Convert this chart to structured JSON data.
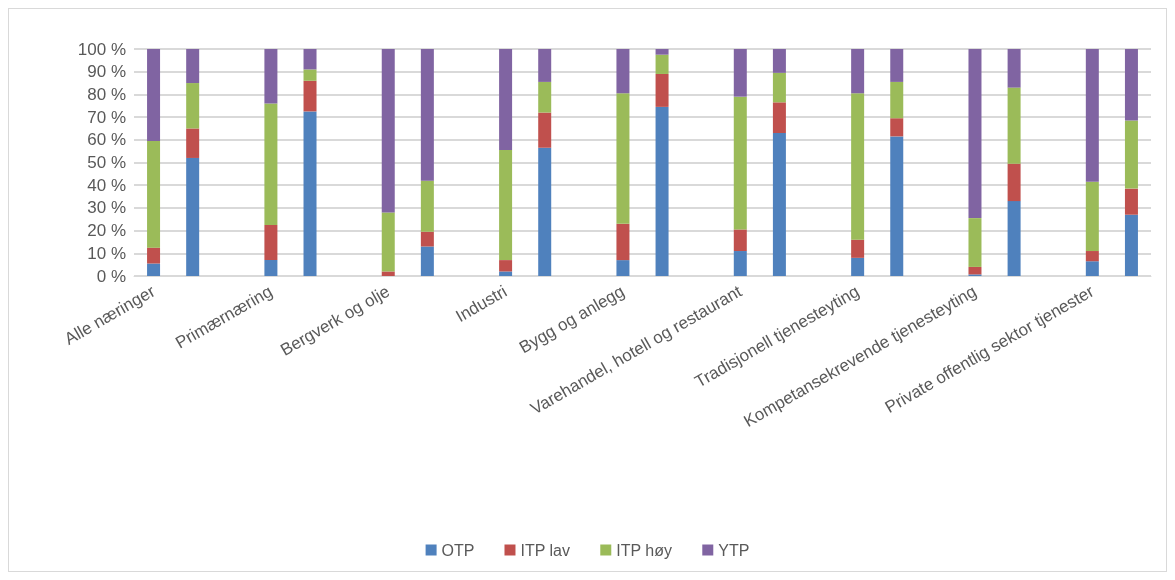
{
  "chart_data": {
    "type": "bar",
    "stacked": true,
    "categories": [
      "Alle næringer",
      null,
      null,
      "Primærnæring",
      null,
      null,
      "Bergverk og olje",
      null,
      null,
      "Industri",
      null,
      null,
      "Bygg og anlegg",
      null,
      null,
      "Varehandel, hotell og restaurant",
      null,
      null,
      "Tradisjonell tjenesteyting",
      null,
      null,
      "Kompetansekrevende tjenesteyting",
      null,
      null,
      "Private offentlig sektor tjenester",
      null
    ],
    "series": [
      {
        "name": "OTP",
        "color": "#4f81bd",
        "values": [
          5.5,
          52,
          null,
          7,
          72.5,
          null,
          0,
          13,
          null,
          2,
          56.5,
          null,
          7,
          74.5,
          null,
          11,
          63,
          null,
          8,
          61.5,
          null,
          0.7,
          33,
          null,
          6.5,
          27
        ]
      },
      {
        "name": "ITP lav",
        "color": "#c0504d",
        "values": [
          7,
          13,
          null,
          15.5,
          13.5,
          null,
          2,
          6.5,
          null,
          5,
          15.5,
          null,
          16,
          14.5,
          null,
          9.5,
          13.5,
          null,
          8,
          8,
          null,
          3.3,
          16.5,
          null,
          4.5,
          11.5
        ]
      },
      {
        "name": "ITP høy",
        "color": "#9bbb59",
        "values": [
          47,
          20,
          null,
          53.5,
          5,
          null,
          26,
          22.5,
          null,
          48.5,
          13.5,
          null,
          57.5,
          8.5,
          null,
          58.5,
          13,
          null,
          64.5,
          16,
          null,
          21.5,
          33.5,
          null,
          30.5,
          30
        ]
      },
      {
        "name": "YTP",
        "color": "#8064a2",
        "values": [
          40.5,
          15,
          null,
          24,
          9,
          null,
          72,
          58,
          null,
          44.5,
          14.5,
          null,
          19.5,
          2.5,
          null,
          21,
          10.5,
          null,
          19.5,
          14.5,
          null,
          74.5,
          17,
          null,
          58.5,
          31.5
        ]
      }
    ],
    "ylim": [
      0,
      100
    ],
    "yticks": [
      {
        "value": 0,
        "label": "0 %"
      },
      {
        "value": 10,
        "label": "10 %"
      },
      {
        "value": 20,
        "label": "20 %"
      },
      {
        "value": 30,
        "label": "30 %"
      },
      {
        "value": 40,
        "label": "40 %"
      },
      {
        "value": 50,
        "label": "50 %"
      },
      {
        "value": 60,
        "label": "60 %"
      },
      {
        "value": 70,
        "label": "70 %"
      },
      {
        "value": 80,
        "label": "80 %"
      },
      {
        "value": 90,
        "label": "90 %"
      },
      {
        "value": 100,
        "label": "100 %"
      }
    ],
    "grid": "y",
    "legend": "bottom"
  }
}
